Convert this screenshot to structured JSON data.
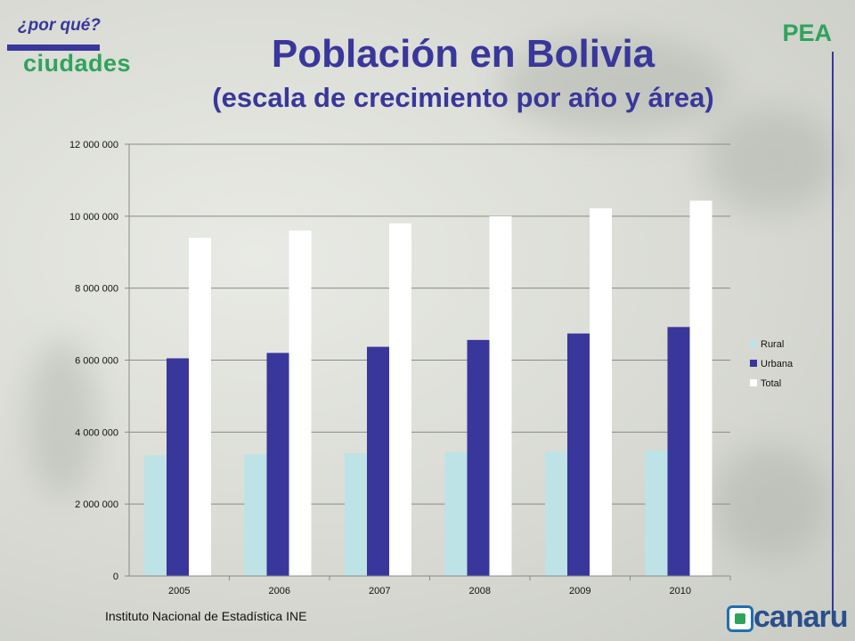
{
  "header": {
    "logo_question": "¿por qué?",
    "logo_word": "ciudades",
    "badge": "PEA"
  },
  "footer": {
    "source": "Instituto Nacional de Estadística INE",
    "brand": "canaru"
  },
  "colors": {
    "title": "#39379b",
    "green": "#2fa35c",
    "rural": "#bde3e6",
    "urbana": "#39379b",
    "total": "#ffffff"
  },
  "chart_data": {
    "type": "bar",
    "title": "Población en Bolivia",
    "subtitle": "(escala de crecimiento por año y área)",
    "categories": [
      "2005",
      "2006",
      "2007",
      "2008",
      "2009",
      "2010"
    ],
    "series": [
      {
        "name": "Rural",
        "values": [
          3350000,
          3380000,
          3410000,
          3440000,
          3460000,
          3490000
        ]
      },
      {
        "name": "Urbana",
        "values": [
          6050000,
          6200000,
          6370000,
          6560000,
          6740000,
          6920000
        ]
      },
      {
        "name": "Total",
        "values": [
          9400000,
          9600000,
          9800000,
          10000000,
          10220000,
          10430000
        ]
      }
    ],
    "ylim": [
      0,
      12000000
    ],
    "yticks": [
      0,
      2000000,
      4000000,
      6000000,
      8000000,
      10000000,
      12000000
    ],
    "ytick_labels": [
      "0",
      "2 000 000",
      "4 000 000",
      "6 000 000",
      "8 000 000",
      "10 000 000",
      "12 000 000"
    ],
    "grid": true,
    "legend": "right"
  }
}
